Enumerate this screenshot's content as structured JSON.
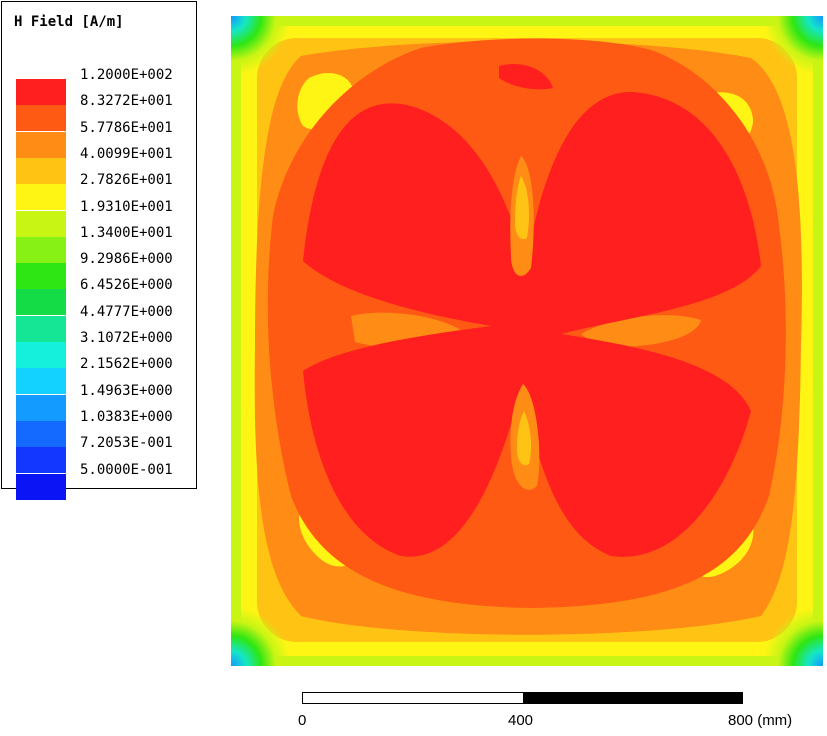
{
  "legend": {
    "title": "H Field [A/m]",
    "entries": [
      {
        "label": "1.2000E+002",
        "color": "#ff1f1f"
      },
      {
        "label": "8.3272E+001",
        "color": "#ff5a14"
      },
      {
        "label": "5.7786E+001",
        "color": "#ff8c14"
      },
      {
        "label": "4.0099E+001",
        "color": "#ffc314"
      },
      {
        "label": "2.7826E+001",
        "color": "#fff514"
      },
      {
        "label": "1.9310E+001",
        "color": "#c8f514"
      },
      {
        "label": "1.3400E+001",
        "color": "#87f014"
      },
      {
        "label": "9.2986E+000",
        "color": "#2de614"
      },
      {
        "label": "6.4526E+000",
        "color": "#14dc46"
      },
      {
        "label": "4.4777E+000",
        "color": "#14e696"
      },
      {
        "label": "3.1072E+000",
        "color": "#14f0dc"
      },
      {
        "label": "2.1562E+000",
        "color": "#14d2ff"
      },
      {
        "label": "1.4963E+000",
        "color": "#149bff"
      },
      {
        "label": "1.0383E+000",
        "color": "#1469ff"
      },
      {
        "label": "7.2053E-001",
        "color": "#1437ff"
      },
      {
        "label": "5.0000E-001",
        "color": "#0a14f5"
      }
    ]
  },
  "scale": {
    "ticks": [
      "0",
      "400",
      "800 (mm)"
    ]
  },
  "plot": {
    "colors": {
      "red": "#ff1f1f",
      "dark_orange": "#ff5a14",
      "orange": "#ff8c14",
      "yellow_orange": "#ffc314",
      "yellow": "#fff514",
      "yellow_green": "#c8f514",
      "green": "#2de614",
      "cyan": "#14e6c8",
      "blue": "#1496ff"
    }
  }
}
